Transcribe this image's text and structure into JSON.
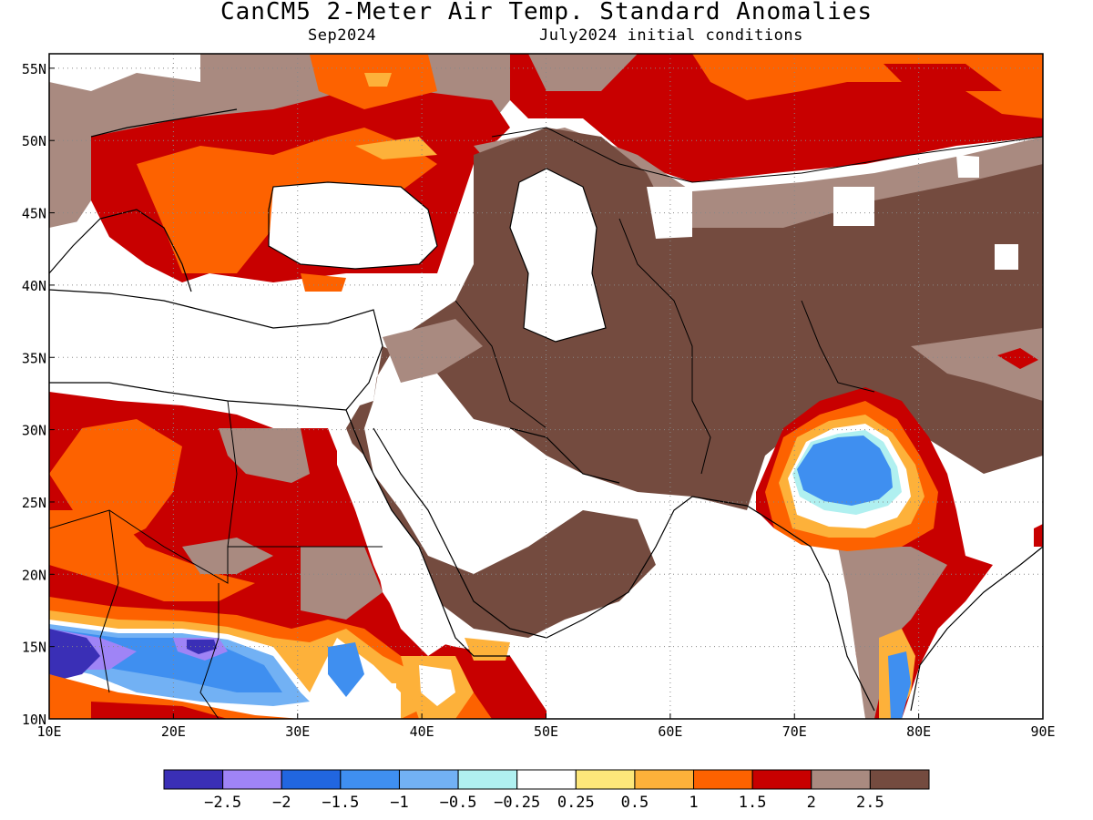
{
  "title": "CanCM5 2-Meter Air Temp. Standard Anomalies",
  "subtitle_left": "Sep2024",
  "subtitle_right": "July2024 initial conditions",
  "map": {
    "lon_range": [
      10,
      90
    ],
    "lat_range": [
      10,
      56
    ],
    "lon_ticks": [
      {
        "v": 10,
        "label": "10E"
      },
      {
        "v": 20,
        "label": "20E"
      },
      {
        "v": 30,
        "label": "30E"
      },
      {
        "v": 40,
        "label": "40E"
      },
      {
        "v": 50,
        "label": "50E"
      },
      {
        "v": 60,
        "label": "60E"
      },
      {
        "v": 70,
        "label": "70E"
      },
      {
        "v": 80,
        "label": "80E"
      },
      {
        "v": 90,
        "label": "90E"
      }
    ],
    "lat_ticks": [
      {
        "v": 10,
        "label": "10N"
      },
      {
        "v": 15,
        "label": "15N"
      },
      {
        "v": 20,
        "label": "20N"
      },
      {
        "v": 25,
        "label": "25N"
      },
      {
        "v": 30,
        "label": "30N"
      },
      {
        "v": 35,
        "label": "35N"
      },
      {
        "v": 40,
        "label": "40N"
      },
      {
        "v": 45,
        "label": "45N"
      },
      {
        "v": 50,
        "label": "50N"
      },
      {
        "v": 55,
        "label": "55N"
      }
    ],
    "grid": true
  },
  "colorbar": {
    "colors": [
      "#3a2fb6",
      "#9f84f6",
      "#2166e0",
      "#3f8ff0",
      "#72b1f4",
      "#b0f0f0",
      "#ffffff",
      "#fde77a",
      "#fdb13a",
      "#fd6200",
      "#c80000",
      "#a98a80",
      "#744b3f"
    ],
    "labels": [
      "-2.5",
      "-2",
      "-1.5",
      "-1",
      "-0.5",
      "-0.25",
      "0.25",
      "0.5",
      "1",
      "1.5",
      "2",
      "2.5"
    ]
  }
}
